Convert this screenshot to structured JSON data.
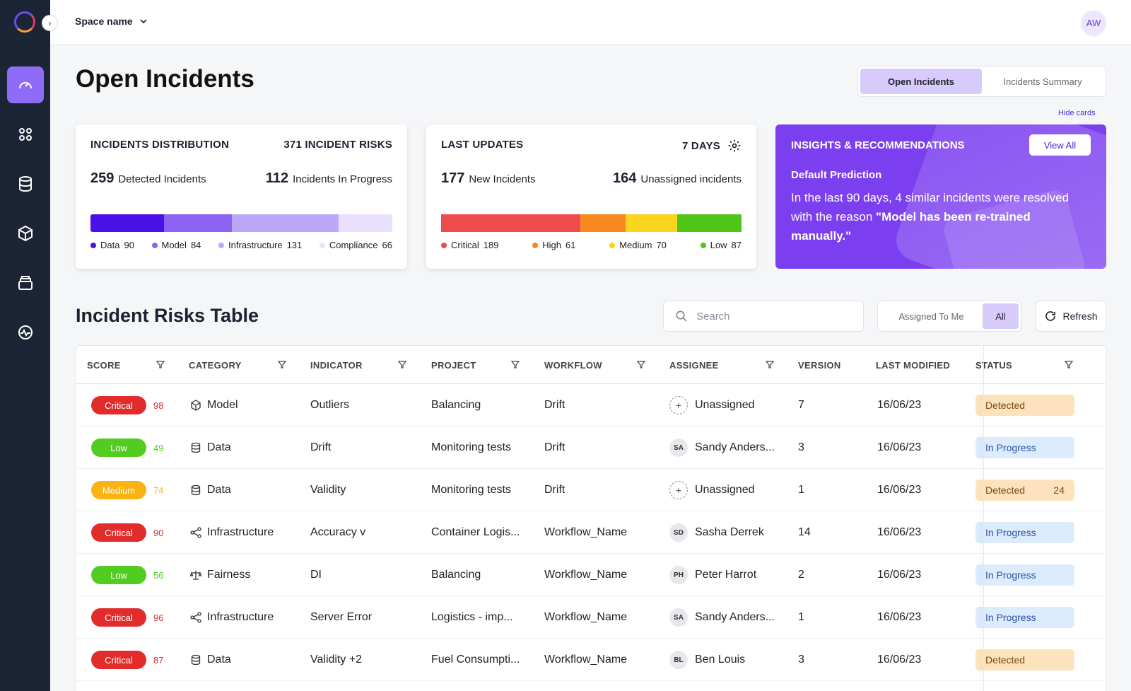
{
  "topbar": {
    "space_name": "Space name",
    "avatar_initials": "AW"
  },
  "page": {
    "title": "Open Incidents"
  },
  "view_tabs": {
    "open": "Open Incidents",
    "summary": "Incidents Summary"
  },
  "hide_cards": "Hide cards",
  "distribution": {
    "title": "INCIDENTS DISTRIBUTION",
    "total": "371 INCIDENT RISKS",
    "detected_num": "259",
    "detected_lbl": "Detected Incidents",
    "progress_num": "112",
    "progress_lbl": "Incidents In Progress",
    "segments": [
      {
        "label": "Data",
        "value": 90,
        "color": "#4a10e8"
      },
      {
        "label": "Model",
        "value": 84,
        "color": "#8c63f2"
      },
      {
        "label": "Infrastructure",
        "value": 131,
        "color": "#bda8f8"
      },
      {
        "label": "Compliance",
        "value": 66,
        "color": "#e8e0fd"
      }
    ]
  },
  "updates": {
    "title": "LAST UPDATES",
    "period": "7 DAYS",
    "new_num": "177",
    "new_lbl": "New Incidents",
    "unassigned_num": "164",
    "unassigned_lbl": "Unassigned incidents",
    "segments": [
      {
        "label": "Critical",
        "value": 189,
        "color": "#ee4b4b"
      },
      {
        "label": "High",
        "value": 61,
        "color": "#f7881e"
      },
      {
        "label": "Medium",
        "value": 70,
        "color": "#fad51f"
      },
      {
        "label": "Low",
        "value": 87,
        "color": "#4fc51a"
      }
    ]
  },
  "insights": {
    "title": "INSIGHTS & RECOMMENDATIONS",
    "view_all": "View All",
    "subtitle": "Default Prediction",
    "text": "In the last 90 days, 4 similar incidents were resolved with the reason ",
    "text_bold": "\"Model has been re-trained manually.\""
  },
  "table_section": {
    "title": "Incident Risks Table",
    "search_placeholder": "Search",
    "assigned_to_me": "Assigned To Me",
    "all": "All",
    "refresh": "Refresh"
  },
  "columns": [
    "SCORE",
    "CATEGORY",
    "INDICATOR",
    "PROJECT",
    "WORKFLOW",
    "ASSIGNEE",
    "VERSION",
    "LAST MODIFIED",
    "STATUS"
  ],
  "colors": {
    "critical": "#e22b2b",
    "low": "#52cc20",
    "medium": "#fbb313",
    "detected_bg": "#fde3bd",
    "progress_bg": "#dcecfd",
    "progress_fg": "#2952a8",
    "detected_fg": "#7a4a10",
    "accent": "#8f6cf7"
  },
  "rows": [
    {
      "severity": "Critical",
      "score": "98",
      "category": "Model",
      "cat_icon": "cube",
      "indicator": "Outliers",
      "project": "Balancing",
      "workflow": "Drift",
      "initials": "+",
      "assignee": "Unassigned",
      "version": "7",
      "modified": "16/06/23",
      "status": "Detected",
      "status_count": ""
    },
    {
      "severity": "Low",
      "score": "49",
      "category": "Data",
      "cat_icon": "database",
      "indicator": "Drift",
      "project": "Monitoring tests",
      "workflow": "Drift",
      "initials": "SA",
      "assignee": "Sandy Anders...",
      "version": "3",
      "modified": "16/06/23",
      "status": "In Progress",
      "status_count": ""
    },
    {
      "severity": "Medium",
      "score": "74",
      "category": "Data",
      "cat_icon": "database",
      "indicator": "Validity",
      "project": "Monitoring tests",
      "workflow": "Drift",
      "initials": "+",
      "assignee": "Unassigned",
      "version": "1",
      "modified": "16/06/23",
      "status": "Detected",
      "status_count": "24"
    },
    {
      "severity": "Critical",
      "score": "90",
      "category": "Infrastructure",
      "cat_icon": "share",
      "indicator": "Accuracy  v",
      "project": "Container Logis...",
      "workflow": "Workflow_Name",
      "initials": "SD",
      "assignee": "Sasha Derrek",
      "version": "14",
      "modified": "16/06/23",
      "status": "In Progress",
      "status_count": ""
    },
    {
      "severity": "Low",
      "score": "56",
      "category": "Fairness",
      "cat_icon": "scale",
      "indicator": "DI",
      "project": "Balancing",
      "workflow": "Workflow_Name",
      "initials": "PH",
      "assignee": "Peter Harrot",
      "version": "2",
      "modified": "16/06/23",
      "status": "In Progress",
      "status_count": ""
    },
    {
      "severity": "Critical",
      "score": "96",
      "category": "Infrastructure",
      "cat_icon": "share",
      "indicator": "Server Error",
      "project": "Logistics - imp...",
      "workflow": "Workflow_Name",
      "initials": "SA",
      "assignee": "Sandy Anders...",
      "version": "1",
      "modified": "16/06/23",
      "status": "In Progress",
      "status_count": ""
    },
    {
      "severity": "Critical",
      "score": "87",
      "category": "Data",
      "cat_icon": "database",
      "indicator": "Validity  +2",
      "project": "Fuel Consumpti...",
      "workflow": "Workflow_Name",
      "initials": "BL",
      "assignee": "Ben Louis",
      "version": "3",
      "modified": "16/06/23",
      "status": "Detected",
      "status_count": ""
    }
  ]
}
